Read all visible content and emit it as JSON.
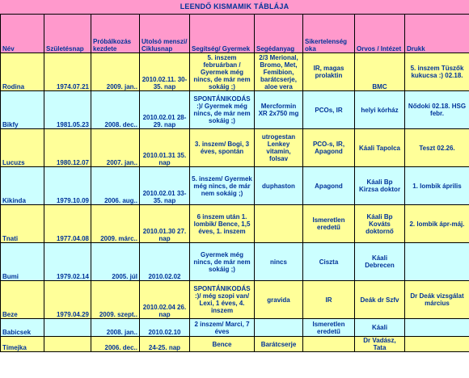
{
  "title": "LEENDŐ KISMAMIK TÁBLÁJA",
  "headers": [
    "Név",
    "Születésnap",
    "Próbálkozás kezdete",
    "Utolsó menszi/ Ciklusnap",
    "Segítség/ Gyermek",
    "Segédanyag",
    "Sikertelenség oka",
    "Orvos / Intézet",
    "Drukk"
  ],
  "rows": [
    {
      "nev": "Rodina",
      "szul": "1974.07.21",
      "prob": "2009. jan..",
      "menszi": "2010.02.11. 30-35. nap",
      "segits": "5. inszem februárban / Gyermek még nincs, de már nem sokáig ;)",
      "anyag": "2/3 Merional, Bromo, Met, Femibion, barátcserje, aloe vera",
      "ok": "IR, magas prolaktin",
      "orvos": "BMC",
      "drukk": "5. inszem Tüszők kukucsa :) 02.18."
    },
    {
      "nev": "Bikfy",
      "szul": "1981.05.23",
      "prob": "2008. dec..",
      "menszi": "2010.02.01 28-29. nap",
      "segits": "SPONTÁNIKODÁS :)/ Gyermek még nincs, de már nem sokáig ;)",
      "anyag": "Mercformin XR 2x750 mg",
      "ok": "PCOs, IR",
      "orvos": "helyi kórház",
      "drukk": "Nődoki 02.18. HSG febr."
    },
    {
      "nev": "Lucuzs",
      "szul": "1980.12.07",
      "prob": "2007. jan..",
      "menszi": "2010.01.31 35. nap",
      "segits": "3. inszem/ Bogi, 3 éves, spontán",
      "anyag": "utrogestan Lenkey vitamin, folsav",
      "ok": "PCO-s, IR, Apagond",
      "orvos": "Káali Tapolca",
      "drukk": "Teszt 02.26."
    },
    {
      "nev": "Kikinda",
      "szul": "1979.10.09",
      "prob": "2006. aug..",
      "menszi": "2010.02.01 33-35. nap",
      "segits": "5. inszem/ Gyermek még nincs, de már nem sokáig ;)",
      "anyag": "duphaston",
      "ok": "Apagond",
      "orvos": "Káali Bp Kirzsa doktor",
      "drukk": "1. lombik április"
    },
    {
      "nev": "Tnati",
      "szul": "1977.04.08",
      "prob": "2009. márc..",
      "menszi": "2010.01.30 27. nap",
      "segits": "6 inszem után 1. lombik/ Bence, 1,5 éves, 1. inszem",
      "anyag": "",
      "ok": "Ismeretlen eredetű",
      "orvos": "Káali Bp Kováts doktornő",
      "drukk": "2. lombik ápr-máj."
    },
    {
      "nev": "Bumi",
      "szul": "1979.02.14",
      "prob": "2005. júl",
      "menszi": "2010.02.02",
      "segits": "Gyermek még nincs, de már nem sokáig ;)",
      "anyag": "nincs",
      "ok": "Ciszta",
      "orvos": "Káali Debrecen",
      "drukk": ""
    },
    {
      "nev": "Beze",
      "szul": "1979.04.29",
      "prob": "2009. szept..",
      "menszi": "2010.02.04 26. nap",
      "segits": "SPONTÁNIKODÁS :)/ még szopi van/ Lexi, 1 éves, 4. inszem",
      "anyag": "gravida",
      "ok": "IR",
      "orvos": "Deák dr Szfv",
      "drukk": "Dr Deák vizsgálat március"
    },
    {
      "nev": "Babicsek",
      "szul": "",
      "prob": "2008. jan..",
      "menszi": "2010.02.10",
      "segits": "2 inszem/ Marci, 7 éves",
      "anyag": "",
      "ok": "Ismeretlen eredetű",
      "orvos": "Káali",
      "drukk": ""
    },
    {
      "nev": "Tímejka",
      "szul": "",
      "prob": "2006. dec..",
      "menszi": "24-25. nap",
      "segits": "Bence",
      "anyag": "Barátcserje",
      "ok": "",
      "orvos": "Dr Vadász, Tata",
      "drukk": ""
    }
  ]
}
